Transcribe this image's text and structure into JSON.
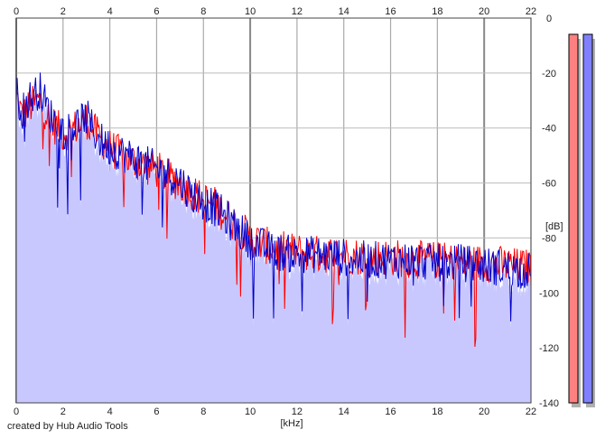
{
  "chart_data": {
    "type": "line",
    "xlabel": "[kHz]",
    "ylabel": "[dB]",
    "xlim": [
      0,
      22
    ],
    "ylim": [
      -140,
      0
    ],
    "x_ticks": [
      0,
      2,
      4,
      6,
      8,
      10,
      12,
      14,
      16,
      18,
      20,
      22
    ],
    "y_ticks": [
      0,
      -20,
      -40,
      -60,
      -80,
      -100,
      -120,
      -140
    ],
    "grid": true,
    "fill_color": "#c8c8ff",
    "series": [
      {
        "color": "#ff0000",
        "x": [
          0,
          0.25,
          0.5,
          0.75,
          1,
          1.5,
          2,
          2.5,
          3,
          3.5,
          4,
          4.5,
          5,
          5.5,
          6,
          6.5,
          7,
          7.5,
          8,
          8.5,
          9,
          9.5,
          10,
          11,
          12,
          13,
          14,
          15,
          16,
          17,
          18,
          19,
          20,
          21,
          22
        ],
        "values": [
          -28,
          -36,
          -33,
          -31,
          -30,
          -38,
          -42,
          -40,
          -37,
          -43,
          -47,
          -50,
          -52,
          -54,
          -55,
          -58,
          -60,
          -63,
          -66,
          -68,
          -72,
          -76,
          -80,
          -84,
          -85,
          -86,
          -86,
          -87,
          -87,
          -88,
          -88,
          -89,
          -89,
          -90,
          -91
        ]
      },
      {
        "color": "#0000cc",
        "x": [
          0,
          0.25,
          0.5,
          0.75,
          1,
          1.5,
          2,
          2.5,
          3,
          3.5,
          4,
          4.5,
          5,
          5.5,
          6,
          6.5,
          7,
          7.5,
          8,
          8.5,
          9,
          9.5,
          10,
          11,
          12,
          13,
          14,
          15,
          16,
          17,
          18,
          19,
          20,
          21,
          22
        ],
        "values": [
          -27,
          -34,
          -30,
          -28,
          -26,
          -36,
          -41,
          -39,
          -36,
          -44,
          -47,
          -49,
          -51,
          -53,
          -55,
          -57,
          -59,
          -64,
          -67,
          -69,
          -73,
          -77,
          -81,
          -85,
          -86,
          -86,
          -87,
          -88,
          -88,
          -88,
          -89,
          -89,
          -90,
          -91,
          -92
        ]
      }
    ]
  },
  "meters": [
    {
      "color": "#ff8080"
    },
    {
      "color": "#8080ff"
    }
  ],
  "footer": {
    "credit": "created by Hub Audio Tools"
  }
}
